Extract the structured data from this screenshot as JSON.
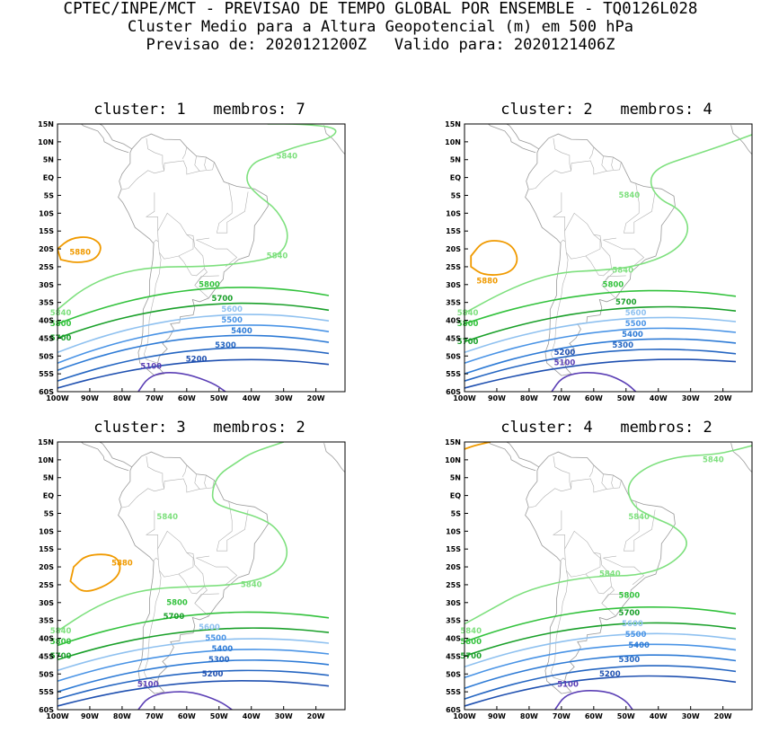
{
  "header": {
    "line1": "CPTEC/INPE/MCT - PREVISAO DE TEMPO GLOBAL POR ENSEMBLE - TQ0126L028",
    "line2": "Cluster Medio para a Altura Geopotencial (m) em 500 hPa",
    "line3": "Previsao de: 2020121200Z   Valido para: 2020121406Z"
  },
  "colors": {
    "c5100": "#5b3fb5",
    "c5200": "#1f50b0",
    "c5300": "#2566c2",
    "c5400": "#2e7bd6",
    "c5500": "#4a94e6",
    "c5600": "#8fc1f0",
    "c5700": "#1aa02a",
    "c5800": "#33c23d",
    "c5840": "#7ee07e",
    "c5880": "#f09a00"
  },
  "axes": {
    "x_ticks": [
      "100W",
      "90W",
      "80W",
      "70W",
      "60W",
      "50W",
      "40W",
      "30W",
      "20W"
    ],
    "y_ticks": [
      "15N",
      "10N",
      "5N",
      "EQ",
      "5S",
      "10S",
      "15S",
      "20S",
      "25S",
      "30S",
      "35S",
      "40S",
      "45S",
      "50S",
      "55S",
      "60S"
    ]
  },
  "chart_data": [
    {
      "type": "contour",
      "title": "cluster: 1   membros: 7",
      "xlim": [
        -100,
        -11
      ],
      "ylim": [
        -60,
        15
      ],
      "levels": [
        5100,
        5200,
        5300,
        5400,
        5500,
        5600,
        5700,
        5800,
        5840,
        5880
      ],
      "labels": [
        {
          "text": "5840",
          "lon": -29,
          "lat": 6
        },
        {
          "text": "5840",
          "lon": -32,
          "lat": -22
        },
        {
          "text": "5880",
          "lon": -93,
          "lat": -21
        },
        {
          "text": "5800",
          "lon": -53,
          "lat": -30
        },
        {
          "text": "5700",
          "lon": -49,
          "lat": -34
        },
        {
          "text": "5600",
          "lon": -46,
          "lat": -37
        },
        {
          "text": "5500",
          "lon": -46,
          "lat": -40
        },
        {
          "text": "5400",
          "lon": -43,
          "lat": -43
        },
        {
          "text": "5300",
          "lon": -48,
          "lat": -47
        },
        {
          "text": "5200",
          "lon": -57,
          "lat": -51
        },
        {
          "text": "5100",
          "lon": -71,
          "lat": -53
        },
        {
          "text": "5840",
          "lon": -99,
          "lat": -38
        },
        {
          "text": "5800",
          "lon": -99,
          "lat": -41
        },
        {
          "text": "5700",
          "lon": -99,
          "lat": -45
        }
      ]
    },
    {
      "type": "contour",
      "title": "cluster: 2   membros: 4",
      "xlim": [
        -100,
        -11
      ],
      "ylim": [
        -60,
        15
      ],
      "levels": [
        5100,
        5200,
        5300,
        5400,
        5500,
        5600,
        5700,
        5800,
        5840,
        5880
      ],
      "labels": [
        {
          "text": "5840",
          "lon": -49,
          "lat": -5
        },
        {
          "text": "5840",
          "lon": -51,
          "lat": -26
        },
        {
          "text": "5880",
          "lon": -93,
          "lat": -29
        },
        {
          "text": "5800",
          "lon": -54,
          "lat": -30
        },
        {
          "text": "5700",
          "lon": -50,
          "lat": -35
        },
        {
          "text": "5600",
          "lon": -47,
          "lat": -38
        },
        {
          "text": "5500",
          "lon": -47,
          "lat": -41
        },
        {
          "text": "5400",
          "lon": -48,
          "lat": -44
        },
        {
          "text": "5300",
          "lon": -51,
          "lat": -47
        },
        {
          "text": "5200",
          "lon": -69,
          "lat": -49
        },
        {
          "text": "5100",
          "lon": -69,
          "lat": -52
        },
        {
          "text": "5840",
          "lon": -99,
          "lat": -38
        },
        {
          "text": "5800",
          "lon": -99,
          "lat": -41
        },
        {
          "text": "5700",
          "lon": -99,
          "lat": -46
        }
      ]
    },
    {
      "type": "contour",
      "title": "cluster: 3   membros: 2",
      "xlim": [
        -100,
        -11
      ],
      "ylim": [
        -60,
        15
      ],
      "levels": [
        5100,
        5200,
        5300,
        5400,
        5500,
        5600,
        5700,
        5800,
        5840,
        5880
      ],
      "labels": [
        {
          "text": "5840",
          "lon": -66,
          "lat": -6
        },
        {
          "text": "5840",
          "lon": -40,
          "lat": -25
        },
        {
          "text": "5880",
          "lon": -80,
          "lat": -19
        },
        {
          "text": "5800",
          "lon": -63,
          "lat": -30
        },
        {
          "text": "5700",
          "lon": -64,
          "lat": -34
        },
        {
          "text": "5600",
          "lon": -53,
          "lat": -37
        },
        {
          "text": "5500",
          "lon": -51,
          "lat": -40
        },
        {
          "text": "5400",
          "lon": -49,
          "lat": -43
        },
        {
          "text": "5300",
          "lon": -50,
          "lat": -46
        },
        {
          "text": "5200",
          "lon": -52,
          "lat": -50
        },
        {
          "text": "5100",
          "lon": -72,
          "lat": -53
        },
        {
          "text": "5840",
          "lon": -99,
          "lat": -38
        },
        {
          "text": "5800",
          "lon": -99,
          "lat": -41
        },
        {
          "text": "5700",
          "lon": -99,
          "lat": -45
        }
      ]
    },
    {
      "type": "contour",
      "title": "cluster: 4   membros: 2",
      "xlim": [
        -100,
        -11
      ],
      "ylim": [
        -60,
        15
      ],
      "levels": [
        5100,
        5200,
        5300,
        5400,
        5500,
        5600,
        5700,
        5800,
        5840,
        5880
      ],
      "labels": [
        {
          "text": "5840",
          "lon": -23,
          "lat": 10
        },
        {
          "text": "5840",
          "lon": -46,
          "lat": -6
        },
        {
          "text": "5840",
          "lon": -55,
          "lat": -22
        },
        {
          "text": "5800",
          "lon": -49,
          "lat": -28
        },
        {
          "text": "5700",
          "lon": -49,
          "lat": -33
        },
        {
          "text": "5600",
          "lon": -48,
          "lat": -36
        },
        {
          "text": "5500",
          "lon": -47,
          "lat": -39
        },
        {
          "text": "5400",
          "lon": -46,
          "lat": -42
        },
        {
          "text": "5300",
          "lon": -49,
          "lat": -46
        },
        {
          "text": "5200",
          "lon": -55,
          "lat": -50
        },
        {
          "text": "5100",
          "lon": -68,
          "lat": -53
        },
        {
          "text": "5840",
          "lon": -98,
          "lat": -38
        },
        {
          "text": "5800",
          "lon": -98,
          "lat": -41
        },
        {
          "text": "5700",
          "lon": -98,
          "lat": -45
        }
      ]
    }
  ]
}
